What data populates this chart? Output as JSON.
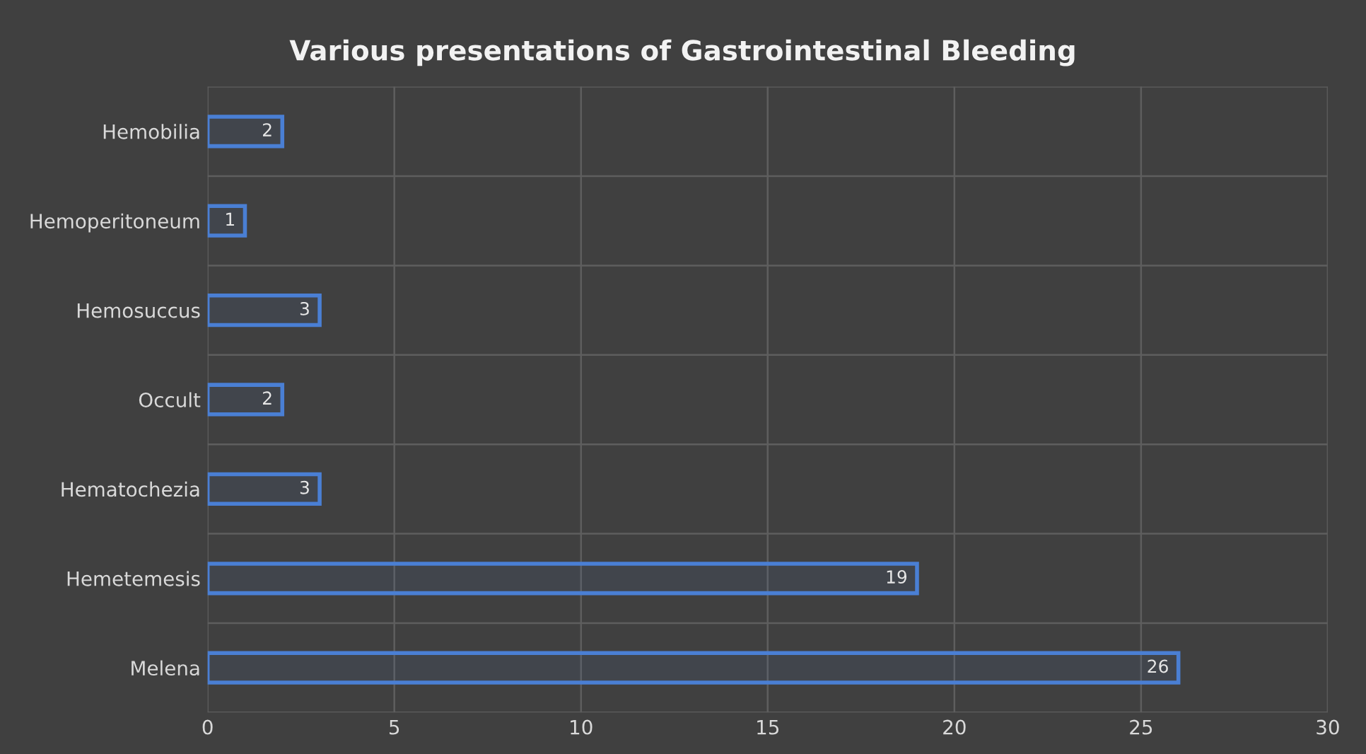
{
  "chart_data": {
    "type": "bar",
    "orientation": "horizontal",
    "title": "Various presentations of Gastrointestinal Bleeding",
    "categories": [
      "Hemobilia",
      "Hemoperitoneum",
      "Hemosuccus",
      "Occult",
      "Hematochezia",
      "Hemetemesis",
      "Melena"
    ],
    "values": [
      2,
      1,
      3,
      2,
      3,
      19,
      26
    ],
    "color": "#4a7fd4",
    "xlim": [
      0,
      30
    ],
    "xticks": [
      0,
      5,
      10,
      15,
      20,
      25,
      30
    ],
    "grid": true,
    "data_labels": true
  }
}
